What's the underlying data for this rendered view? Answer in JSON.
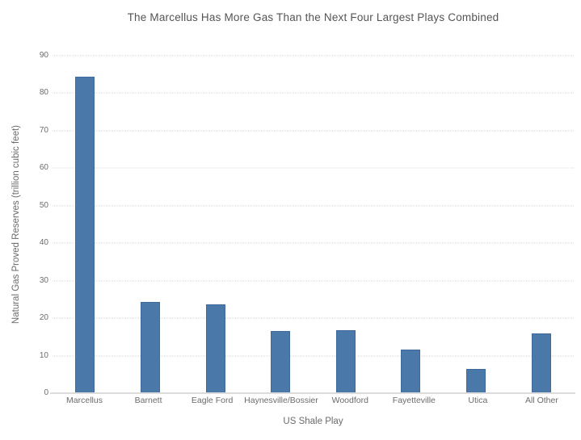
{
  "chart_data": {
    "type": "bar",
    "title": "The Marcellus Has More Gas Than the Next Four Largest Plays Combined",
    "xlabel": "US Shale Play",
    "ylabel": "Natural Gas Proved Reserves (trillion cubic feet)",
    "categories": [
      "Marcellus",
      "Barnett",
      "Eagle Ford",
      "Haynesville/Bossier",
      "Woodford",
      "Fayetteville",
      "Utica",
      "All Other"
    ],
    "values": [
      84.5,
      24.4,
      23.7,
      16.6,
      16.7,
      11.7,
      6.4,
      15.9
    ],
    "ylim": [
      0,
      90
    ],
    "ytick_step": 10,
    "yticks": [
      0,
      10,
      20,
      30,
      40,
      50,
      60,
      70,
      80,
      90
    ],
    "grid": "horizontal-dotted",
    "legend": "none",
    "colors": {
      "bar_fill": "#4a78a8",
      "bar_border": "#3e6b9c",
      "grid_line": "#d9d9d9",
      "axis_line": "#dcdcdc",
      "title_text": "#545454",
      "axis_text": "#6b6b6b",
      "background": "#ffffff"
    }
  }
}
